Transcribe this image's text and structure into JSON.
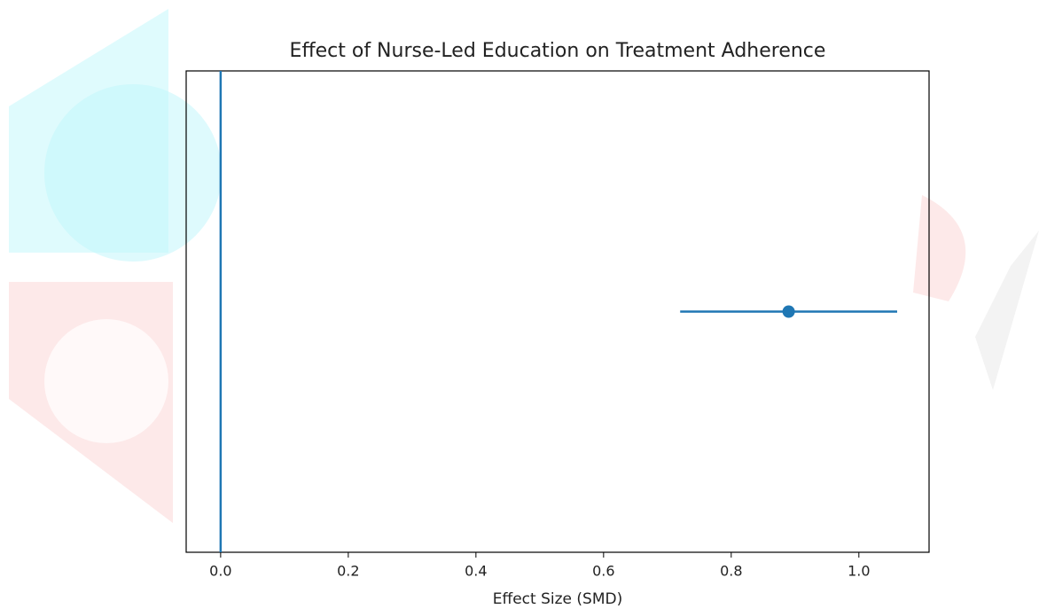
{
  "chart_data": {
    "type": "forest",
    "title": "Effect of Nurse-Led Education on Treatment Adherence",
    "x_label": "Effect Size (SMD)",
    "categories": [
      null
    ],
    "values": [
      0.89
    ],
    "lower": [
      0.72
    ],
    "upper": [
      1.06
    ],
    "color": "#1f77b4",
    "reference_line": 0,
    "xlim": [
      -0.054,
      1.11
    ],
    "xticks": [
      {
        "value": 0,
        "label": "0.0"
      },
      0.2,
      0.4,
      0.6,
      0.8,
      {
        "value": 1,
        "label": "1.0"
      }
    ]
  }
}
